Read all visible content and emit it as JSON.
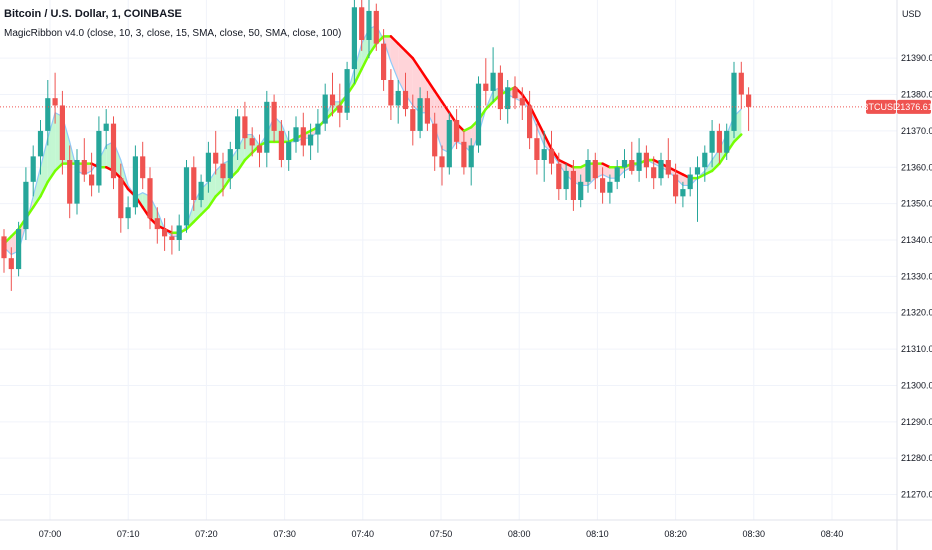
{
  "symbol_title": "Bitcoin / U.S. Dollar, 1, COINBASE",
  "indicator_label": "MagicRibbon v4.0 (close, 10, 3, close, 15, SMA, close, 50, SMA, close, 100)",
  "currency": "USD",
  "price_tag": {
    "symbol": "BTCUSD",
    "price": "21376.61"
  },
  "colors": {
    "up": "#26a69a",
    "down": "#ef5350",
    "ribbon_up_line": "#76ff03",
    "ribbon_down_line": "#ff0000",
    "ribbon_up_fill": "#b9f6ca",
    "ribbon_down_fill": "#ffcdd2",
    "fast_line": "#90caf9",
    "grid": "#f0f3fa",
    "axis_text": "#131722",
    "price_line": "#ef5350"
  },
  "chart_data": {
    "type": "candlestick",
    "ylim": [
      21263,
      21406
    ],
    "y_ticks": [
      "21270.00",
      "21280.00",
      "21290.00",
      "21300.00",
      "21310.00",
      "21320.00",
      "21330.00",
      "21340.00",
      "21350.00",
      "21360.00",
      "21370.00",
      "21380.00",
      "21390.00"
    ],
    "x_ticks": [
      "07:00",
      "07:10",
      "07:20",
      "07:30",
      "07:40",
      "07:50",
      "08:00",
      "08:10",
      "08:20",
      "08:30",
      "08:40"
    ],
    "last_price": 21376.61,
    "candles": [
      [
        21341,
        21343,
        21331,
        21335
      ],
      [
        21335,
        21338,
        21326,
        21332
      ],
      [
        21332,
        21345,
        21330,
        21343
      ],
      [
        21343,
        21360,
        21340,
        21356
      ],
      [
        21356,
        21366,
        21352,
        21363
      ],
      [
        21363,
        21373,
        21358,
        21370
      ],
      [
        21370,
        21384,
        21366,
        21379
      ],
      [
        21379,
        21386,
        21372,
        21377
      ],
      [
        21377,
        21381,
        21358,
        21362
      ],
      [
        21362,
        21366,
        21346,
        21350
      ],
      [
        21350,
        21365,
        21347,
        21362
      ],
      [
        21362,
        21368,
        21356,
        21358
      ],
      [
        21358,
        21364,
        21352,
        21355
      ],
      [
        21355,
        21374,
        21353,
        21370
      ],
      [
        21370,
        21376,
        21365,
        21372
      ],
      [
        21372,
        21374,
        21354,
        21357
      ],
      [
        21357,
        21361,
        21342,
        21346
      ],
      [
        21346,
        21352,
        21343,
        21349
      ],
      [
        21349,
        21366,
        21347,
        21363
      ],
      [
        21363,
        21367,
        21354,
        21357
      ],
      [
        21357,
        21360,
        21343,
        21346
      ],
      [
        21346,
        21349,
        21339,
        21343
      ],
      [
        21343,
        21346,
        21337,
        21341
      ],
      [
        21341,
        21344,
        21336,
        21340
      ],
      [
        21340,
        21347,
        21337,
        21344
      ],
      [
        21344,
        21362,
        21342,
        21360
      ],
      [
        21360,
        21363,
        21348,
        21351
      ],
      [
        21351,
        21358,
        21349,
        21356
      ],
      [
        21356,
        21367,
        21353,
        21364
      ],
      [
        21364,
        21370,
        21358,
        21361
      ],
      [
        21361,
        21364,
        21352,
        21357
      ],
      [
        21357,
        21367,
        21354,
        21365
      ],
      [
        21365,
        21376,
        21362,
        21374
      ],
      [
        21374,
        21378,
        21365,
        21368
      ],
      [
        21368,
        21371,
        21363,
        21366
      ],
      [
        21366,
        21369,
        21360,
        21364
      ],
      [
        21364,
        21381,
        21360,
        21378
      ],
      [
        21378,
        21380,
        21367,
        21370
      ],
      [
        21370,
        21373,
        21360,
        21362
      ],
      [
        21362,
        21370,
        21359,
        21367
      ],
      [
        21367,
        21374,
        21364,
        21371
      ],
      [
        21371,
        21375,
        21363,
        21366
      ],
      [
        21366,
        21372,
        21362,
        21369
      ],
      [
        21369,
        21376,
        21364,
        21372
      ],
      [
        21372,
        21383,
        21370,
        21380
      ],
      [
        21380,
        21386,
        21374,
        21377
      ],
      [
        21377,
        21383,
        21371,
        21375
      ],
      [
        21375,
        21389,
        21373,
        21387
      ],
      [
        21387,
        21406,
        21383,
        21404
      ],
      [
        21404,
        21406,
        21392,
        21395
      ],
      [
        21395,
        21406,
        21390,
        21403
      ],
      [
        21403,
        21405,
        21392,
        21394
      ],
      [
        21394,
        21398,
        21381,
        21384
      ],
      [
        21384,
        21387,
        21373,
        21377
      ],
      [
        21377,
        21384,
        21372,
        21381
      ],
      [
        21381,
        21386,
        21374,
        21376
      ],
      [
        21376,
        21380,
        21366,
        21370
      ],
      [
        21370,
        21382,
        21368,
        21379
      ],
      [
        21379,
        21381,
        21370,
        21372
      ],
      [
        21372,
        21375,
        21359,
        21363
      ],
      [
        21363,
        21366,
        21355,
        21360
      ],
      [
        21360,
        21375,
        21358,
        21373
      ],
      [
        21373,
        21376,
        21365,
        21367
      ],
      [
        21367,
        21370,
        21358,
        21360
      ],
      [
        21360,
        21368,
        21355,
        21366
      ],
      [
        21366,
        21385,
        21364,
        21383
      ],
      [
        21383,
        21390,
        21377,
        21381
      ],
      [
        21381,
        21393,
        21378,
        21386
      ],
      [
        21386,
        21388,
        21373,
        21376
      ],
      [
        21376,
        21384,
        21372,
        21382
      ],
      [
        21382,
        21385,
        21376,
        21379
      ],
      [
        21379,
        21382,
        21373,
        21377
      ],
      [
        21377,
        21381,
        21365,
        21368
      ],
      [
        21368,
        21372,
        21358,
        21362
      ],
      [
        21362,
        21370,
        21356,
        21365
      ],
      [
        21365,
        21370,
        21358,
        21361
      ],
      [
        21361,
        21364,
        21351,
        21354
      ],
      [
        21354,
        21361,
        21351,
        21359
      ],
      [
        21359,
        21362,
        21348,
        21351
      ],
      [
        21351,
        21358,
        21349,
        21356
      ],
      [
        21356,
        21365,
        21353,
        21362
      ],
      [
        21362,
        21364,
        21354,
        21357
      ],
      [
        21357,
        21360,
        21350,
        21353
      ],
      [
        21353,
        21358,
        21350,
        21356
      ],
      [
        21356,
        21362,
        21354,
        21360
      ],
      [
        21360,
        21365,
        21357,
        21362
      ],
      [
        21362,
        21367,
        21358,
        21359
      ],
      [
        21359,
        21368,
        21356,
        21364
      ],
      [
        21364,
        21366,
        21357,
        21360
      ],
      [
        21360,
        21363,
        21354,
        21357
      ],
      [
        21357,
        21364,
        21355,
        21362
      ],
      [
        21362,
        21368,
        21357,
        21358
      ],
      [
        21358,
        21361,
        21350,
        21352
      ],
      [
        21352,
        21356,
        21349,
        21354
      ],
      [
        21354,
        21360,
        21352,
        21358
      ],
      [
        21358,
        21363,
        21345,
        21360
      ],
      [
        21360,
        21366,
        21356,
        21364
      ],
      [
        21364,
        21373,
        21360,
        21370
      ],
      [
        21370,
        21372,
        21361,
        21364
      ],
      [
        21364,
        21372,
        21362,
        21370
      ],
      [
        21370,
        21389,
        21368,
        21386
      ],
      [
        21386,
        21389,
        21376,
        21380
      ],
      [
        21380,
        21382,
        21370,
        21376.61
      ]
    ],
    "ribbon": [
      21339,
      21341,
      21343,
      21346,
      21349,
      21352,
      21356,
      21359,
      21361,
      21361,
      21361,
      21361,
      21361,
      21360,
      21360,
      21359,
      21357,
      21354,
      21352,
      21349,
      21346,
      21344,
      21343,
      21342,
      21342,
      21343,
      21345,
      21347,
      21349,
      21352,
      21354,
      21357,
      21359,
      21362,
      21364,
      21366,
      21367,
      21367,
      21367,
      21367,
      21368,
      21369,
      21370,
      21371,
      21373,
      21375,
      21377,
      21380,
      21383,
      21387,
      21391,
      21394,
      21396,
      21396,
      21394,
      21392,
      21390,
      21387,
      21384,
      21381,
      21378,
      21375,
      21372,
      21370,
      21371,
      21373,
      21376,
      21378,
      21380,
      21381,
      21382,
      21380,
      21377,
      21373,
      21369,
      21365,
      21362,
      21361,
      21360,
      21360,
      21361,
      21361,
      21361,
      21360,
      21360,
      21360,
      21361,
      21361,
      21362,
      21362,
      21361,
      21360,
      21359,
      21358,
      21357,
      21357,
      21358,
      21359,
      21361,
      21364,
      21367,
      21369
    ],
    "fast": [
      21338,
      21336,
      21337,
      21344,
      21352,
      21360,
      21368,
      21375,
      21374,
      21367,
      21359,
      21358,
      21359,
      21362,
      21366,
      21367,
      21362,
      21355,
      21352,
      21353,
      21352,
      21348,
      21343,
      21341,
      21341,
      21344,
      21350,
      21354,
      21356,
      21359,
      21361,
      21362,
      21365,
      21369,
      21369,
      21366,
      21369,
      21374,
      21372,
      21367,
      21367,
      21368,
      21368,
      21370,
      21374,
      21378,
      21378,
      21380,
      21387,
      21394,
      21398,
      21399,
      21395,
      21389,
      21384,
      21380,
      21377,
      21375,
      21375,
      21371,
      21365,
      21364,
      21367,
      21366,
      21364,
      21369,
      21376,
      21381,
      21382,
      21380,
      21379,
      21378,
      21376,
      21371,
      21366,
      21364,
      21361,
      21358,
      21356,
      21355,
      21355,
      21357,
      21358,
      21357,
      21357,
      21359,
      21360,
      21361,
      21362,
      21361,
      21360,
      21359,
      21357,
      21355,
      21355,
      21357,
      21359,
      21362,
      21365,
      21369,
      21374,
      21376
    ]
  }
}
